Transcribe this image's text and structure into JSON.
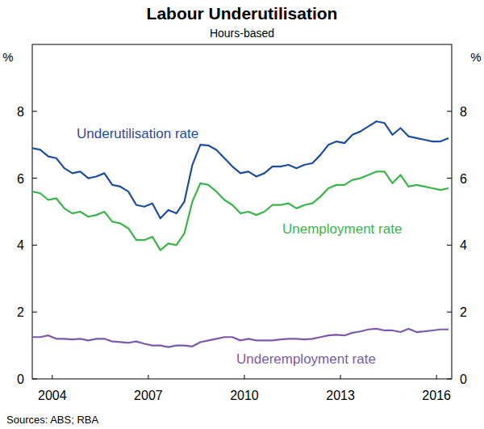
{
  "chart_data": {
    "type": "line",
    "title": "Labour Underutilisation",
    "subtitle": "Hours-based",
    "ylabel": "%",
    "source": "Sources:  ABS; RBA",
    "x": [
      2003.875,
      2004.125,
      2004.375,
      2004.625,
      2004.875,
      2005.125,
      2005.375,
      2005.625,
      2005.875,
      2006.125,
      2006.375,
      2006.625,
      2006.875,
      2007.125,
      2007.375,
      2007.625,
      2007.875,
      2008.125,
      2008.375,
      2008.625,
      2008.875,
      2009.125,
      2009.375,
      2009.625,
      2009.875,
      2010.125,
      2010.375,
      2010.625,
      2010.875,
      2011.125,
      2011.375,
      2011.625,
      2011.875,
      2012.125,
      2012.375,
      2012.625,
      2012.875,
      2013.125,
      2013.375,
      2013.625,
      2013.875,
      2014.125,
      2014.375,
      2014.625,
      2014.875,
      2015.125,
      2015.375,
      2015.625,
      2015.875,
      2016.125,
      2016.375,
      2016.625,
      2016.875
    ],
    "xlim": [
      2003.875,
      2016.975
    ],
    "xticks": [
      {
        "value": 2004.5,
        "label": "2004"
      },
      {
        "value": 2007.5,
        "label": "2007"
      },
      {
        "value": 2010.5,
        "label": "2010"
      },
      {
        "value": 2013.5,
        "label": "2013"
      },
      {
        "value": 2016.5,
        "label": "2016"
      }
    ],
    "ylim": [
      0,
      10
    ],
    "yticks": [
      0,
      2,
      4,
      6,
      8
    ],
    "grid": false,
    "series": [
      {
        "name": "Underutilisation rate",
        "color": "#1f4e9e",
        "values": [
          6.9,
          6.85,
          6.65,
          6.6,
          6.3,
          6.15,
          6.2,
          6.0,
          6.05,
          6.15,
          5.8,
          5.75,
          5.6,
          5.2,
          5.15,
          5.25,
          4.8,
          5.05,
          4.95,
          5.3,
          6.4,
          7.0,
          6.98,
          6.85,
          6.6,
          6.35,
          6.15,
          6.2,
          6.05,
          6.15,
          6.35,
          6.35,
          6.4,
          6.3,
          6.4,
          6.45,
          6.7,
          7.0,
          7.1,
          7.05,
          7.3,
          7.4,
          7.55,
          7.7,
          7.65,
          7.3,
          7.5,
          7.25,
          7.2,
          7.15,
          7.1,
          7.1,
          7.2
        ]
      },
      {
        "name": "Unemployment rate",
        "color": "#3cb44b",
        "values": [
          5.6,
          5.55,
          5.35,
          5.4,
          5.1,
          4.95,
          5.0,
          4.85,
          4.9,
          5.0,
          4.7,
          4.65,
          4.5,
          4.15,
          4.15,
          4.25,
          3.85,
          4.05,
          4.0,
          4.35,
          5.3,
          5.85,
          5.8,
          5.6,
          5.35,
          5.2,
          4.95,
          5.0,
          4.9,
          5.0,
          5.2,
          5.2,
          5.25,
          5.1,
          5.2,
          5.25,
          5.45,
          5.7,
          5.8,
          5.8,
          5.95,
          6.0,
          6.1,
          6.2,
          6.2,
          5.85,
          6.1,
          5.75,
          5.8,
          5.75,
          5.7,
          5.65,
          5.7
        ]
      },
      {
        "name": "Underemployment rate",
        "color": "#7b5ba6",
        "values": [
          1.25,
          1.25,
          1.3,
          1.2,
          1.2,
          1.18,
          1.2,
          1.15,
          1.2,
          1.2,
          1.12,
          1.1,
          1.08,
          1.12,
          1.05,
          1.0,
          1.0,
          0.95,
          1.0,
          1.0,
          0.97,
          1.1,
          1.15,
          1.2,
          1.25,
          1.25,
          1.15,
          1.2,
          1.15,
          1.15,
          1.15,
          1.18,
          1.2,
          1.2,
          1.18,
          1.2,
          1.25,
          1.3,
          1.32,
          1.3,
          1.38,
          1.42,
          1.48,
          1.5,
          1.45,
          1.45,
          1.4,
          1.5,
          1.4,
          1.42,
          1.45,
          1.48,
          1.48
        ]
      }
    ]
  }
}
